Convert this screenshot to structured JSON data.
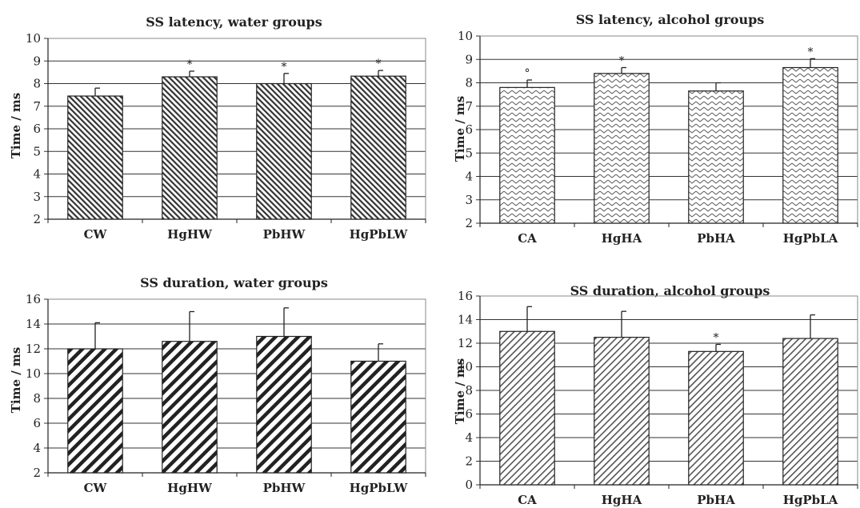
{
  "chart_data": [
    {
      "type": "bar",
      "title": "SS latency, water groups",
      "xlabel": "",
      "ylabel": "Time / ms",
      "categories": [
        "CW",
        "HgHW",
        "PbHW",
        "HgPbLW"
      ],
      "values": [
        7.45,
        8.3,
        8.0,
        8.33
      ],
      "error": [
        0.35,
        0.25,
        0.45,
        0.25
      ],
      "markers": [
        "",
        "*",
        "*",
        "*"
      ],
      "ylim": [
        2,
        10
      ],
      "yticks": [
        2,
        3,
        4,
        5,
        6,
        7,
        8,
        9,
        10
      ],
      "grid": true,
      "pattern": "dense-back-diagonal"
    },
    {
      "type": "bar",
      "title": "SS latency, alcohol groups",
      "xlabel": "",
      "ylabel": "Time / ms",
      "categories": [
        "CA",
        "HgHA",
        "PbHA",
        "HgPbLA"
      ],
      "values": [
        7.8,
        8.4,
        7.65,
        8.65
      ],
      "error": [
        0.32,
        0.25,
        0.35,
        0.38
      ],
      "markers": [
        "°",
        "*",
        "",
        "*"
      ],
      "ylim": [
        2,
        10
      ],
      "yticks": [
        2,
        3,
        4,
        5,
        6,
        7,
        8,
        9,
        10
      ],
      "grid": true,
      "pattern": "zigzag"
    },
    {
      "type": "bar",
      "title": "SS duration, water groups",
      "xlabel": "",
      "ylabel": "Time / ms",
      "categories": [
        "CW",
        "HgHW",
        "PbHW",
        "HgPbLW"
      ],
      "values": [
        12.0,
        12.6,
        13.0,
        11.0
      ],
      "error": [
        2.1,
        2.4,
        2.3,
        1.4
      ],
      "markers": [
        "",
        "",
        "",
        ""
      ],
      "ylim": [
        2,
        16
      ],
      "yticks": [
        2,
        4,
        6,
        8,
        10,
        12,
        14,
        16
      ],
      "grid": true,
      "pattern": "bold-diagonal"
    },
    {
      "type": "bar",
      "title": "SS duration, alcohol groups",
      "xlabel": "",
      "ylabel": "Time / ms",
      "categories": [
        "CA",
        "HgHA",
        "PbHA",
        "HgPbLA"
      ],
      "values": [
        13.0,
        12.5,
        11.3,
        12.4
      ],
      "error": [
        2.1,
        2.2,
        0.6,
        2.0
      ],
      "markers": [
        "",
        "",
        "*",
        ""
      ],
      "ylim": [
        0,
        16
      ],
      "yticks": [
        0,
        2,
        4,
        6,
        8,
        10,
        12,
        14,
        16
      ],
      "grid": true,
      "pattern": "fine-diagonal"
    }
  ]
}
